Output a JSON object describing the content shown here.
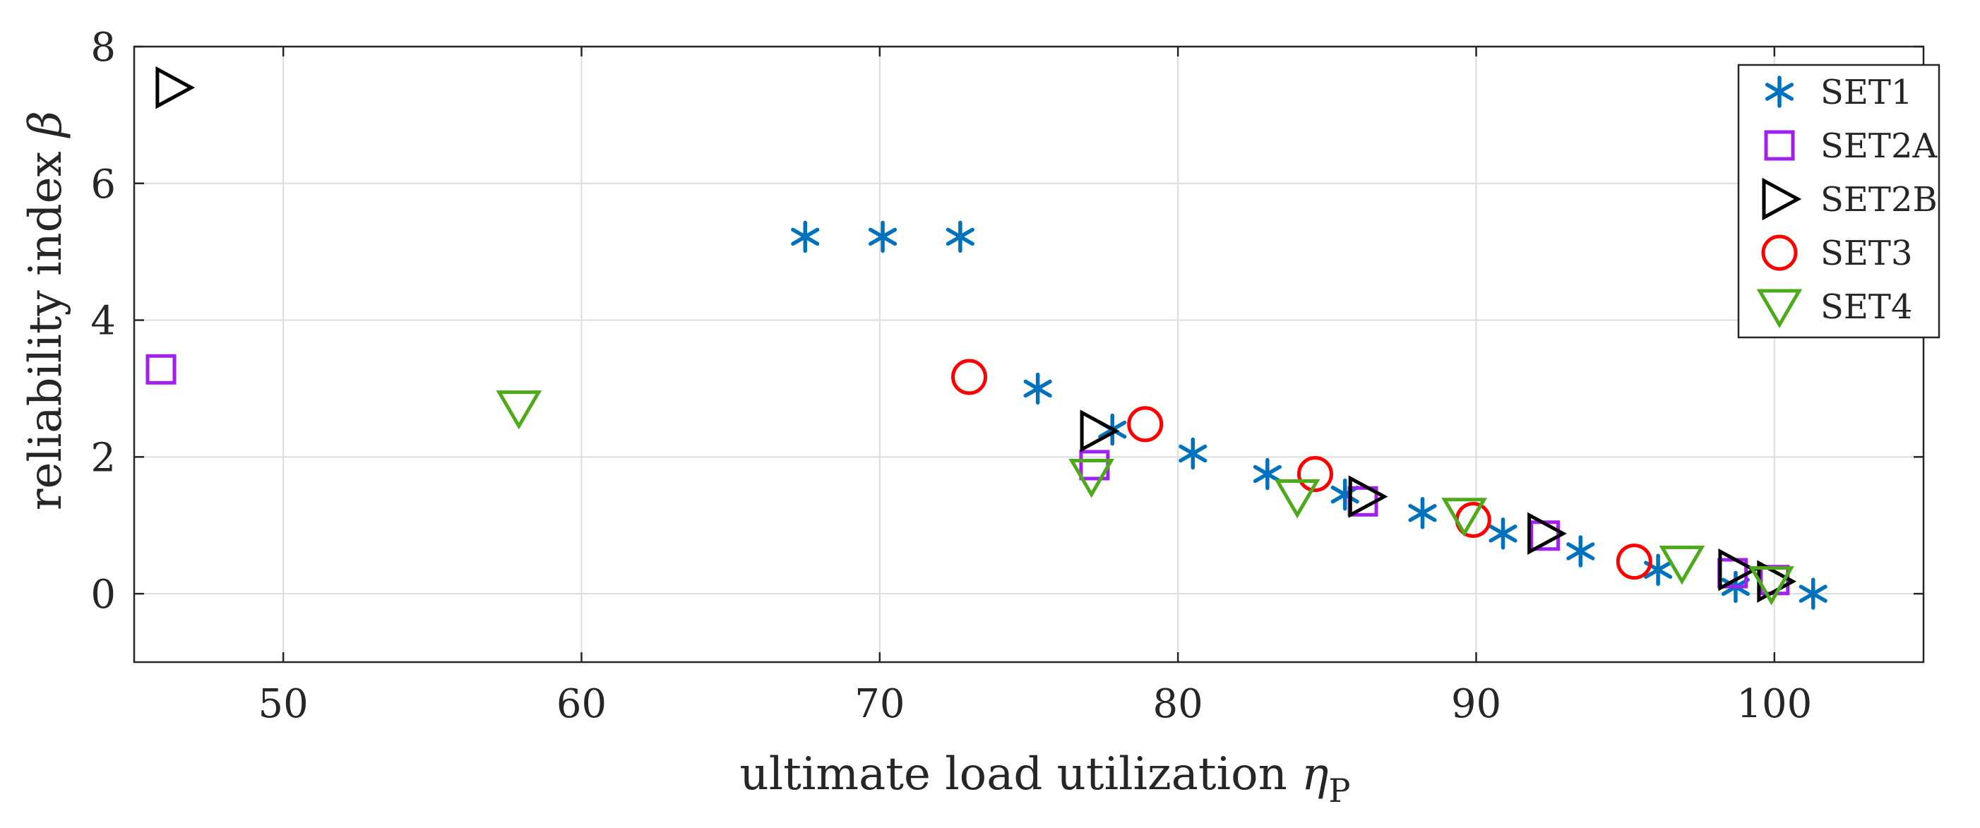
{
  "chart_data": {
    "type": "scatter",
    "title": "",
    "xlabel": "ultimate load utilization",
    "xlabel_symbol": "η",
    "xlabel_subscript": "P",
    "ylabel": "reliability index",
    "ylabel_symbol": "β",
    "xlim": [
      45,
      105
    ],
    "ylim": [
      -1,
      8
    ],
    "xticks": [
      50,
      60,
      70,
      80,
      90,
      100
    ],
    "yticks": [
      0,
      2,
      4,
      6,
      8
    ],
    "grid": true,
    "legend_position": "top-right",
    "series": [
      {
        "name": "SET1",
        "marker": "asterisk",
        "color": "#0072BD",
        "points": [
          [
            67.5,
            5.22
          ],
          [
            70.1,
            5.22
          ],
          [
            72.7,
            5.22
          ],
          [
            75.3,
            3.0
          ],
          [
            77.8,
            2.4
          ],
          [
            80.5,
            2.05
          ],
          [
            83.0,
            1.75
          ],
          [
            85.6,
            1.45
          ],
          [
            88.2,
            1.18
          ],
          [
            90.9,
            0.88
          ],
          [
            93.5,
            0.62
          ],
          [
            96.1,
            0.35
          ],
          [
            98.7,
            0.1
          ],
          [
            101.3,
            0.0
          ]
        ]
      },
      {
        "name": "SET2A",
        "marker": "square",
        "color": "#A020F0",
        "points": [
          [
            45.9,
            3.28
          ],
          [
            77.2,
            1.88
          ],
          [
            86.2,
            1.35
          ],
          [
            92.3,
            0.85
          ],
          [
            98.6,
            0.3
          ],
          [
            100.0,
            0.2
          ]
        ]
      },
      {
        "name": "SET2B",
        "marker": "triangle-right",
        "color": "#000000",
        "points": [
          [
            46.3,
            7.4
          ],
          [
            77.3,
            2.38
          ],
          [
            86.3,
            1.42
          ],
          [
            92.3,
            0.88
          ],
          [
            98.7,
            0.35
          ],
          [
            100.0,
            0.18
          ]
        ]
      },
      {
        "name": "SET3",
        "marker": "circle",
        "color": "#FF0000",
        "points": [
          [
            73.0,
            3.17
          ],
          [
            78.9,
            2.48
          ],
          [
            84.6,
            1.75
          ],
          [
            89.9,
            1.08
          ],
          [
            95.3,
            0.47
          ]
        ]
      },
      {
        "name": "SET4",
        "marker": "triangle-down",
        "color": "#4DAA1A",
        "points": [
          [
            57.9,
            2.72
          ],
          [
            77.1,
            1.72
          ],
          [
            84.0,
            1.42
          ],
          [
            89.6,
            1.15
          ],
          [
            96.9,
            0.45
          ],
          [
            99.9,
            0.15
          ]
        ]
      }
    ]
  }
}
